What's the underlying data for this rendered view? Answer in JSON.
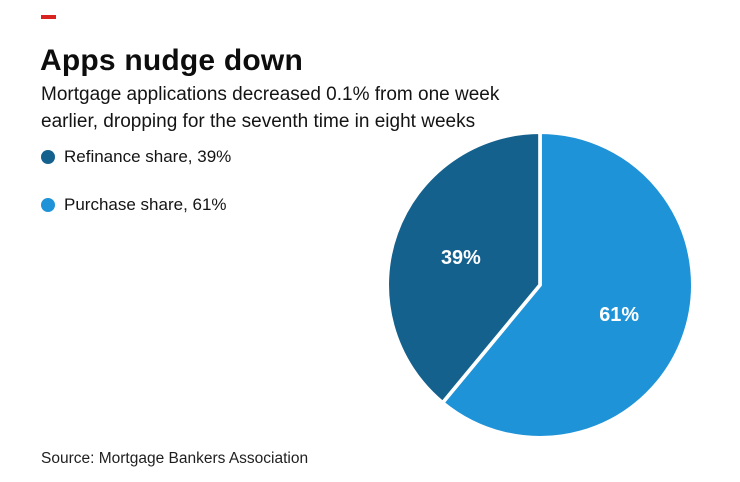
{
  "accent_color": "#d8231f",
  "header": {
    "title": "Apps nudge down",
    "subtitle": "Mortgage applications decreased 0.1% from one week earlier, dropping for the seventh time in eight weeks"
  },
  "legend": [
    {
      "label": "Refinance share, 39%",
      "color": "#15618e"
    },
    {
      "label": "Purchase share, 61%",
      "color": "#1f93d8"
    }
  ],
  "source": "Source: Mortgage Bankers Association",
  "chart_data": {
    "type": "pie",
    "title": "Apps nudge down",
    "subtitle": "Mortgage applications decreased 0.1% from one week earlier, dropping for the seventh time in eight weeks",
    "slices": [
      {
        "name": "Purchase share",
        "value": 61,
        "label": "61%",
        "color": "#1f93d8"
      },
      {
        "name": "Refinance share",
        "value": 39,
        "label": "39%",
        "color": "#15618e"
      }
    ],
    "start_angle_deg": 0,
    "direction": "clockwise",
    "divider_color": "#ffffff",
    "legend_position": "left",
    "source": "Source: Mortgage Bankers Association"
  }
}
